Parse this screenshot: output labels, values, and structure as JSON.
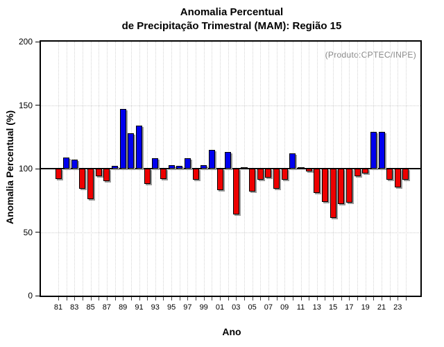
{
  "title_line1": "Anomalia Percentual",
  "title_line2": "de Precipitação Trimestral (MAM): Região 15",
  "annotation": "(Produto:CPTEC/INPE)",
  "chart_data": {
    "type": "bar",
    "title": "Anomalia Percentual de Precipitação Trimestral (MAM): Região 15",
    "xlabel": "Ano",
    "ylabel": "Anomalia Percentual (%)",
    "ylim": [
      0,
      200
    ],
    "yticks": [
      0,
      50,
      100,
      150,
      200
    ],
    "baseline": 100,
    "grid": "dotted",
    "legend_position": "none",
    "x_tick_labels": [
      "81",
      "83",
      "85",
      "87",
      "89",
      "91",
      "93",
      "95",
      "97",
      "99",
      "01",
      "03",
      "05",
      "07",
      "09",
      "11",
      "13",
      "15",
      "17",
      "19",
      "21",
      "23"
    ],
    "categories": [
      1981,
      1982,
      1983,
      1984,
      1985,
      1986,
      1987,
      1988,
      1989,
      1990,
      1991,
      1992,
      1993,
      1994,
      1995,
      1996,
      1997,
      1998,
      1999,
      2000,
      2001,
      2002,
      2003,
      2004,
      2005,
      2006,
      2007,
      2008,
      2009,
      2010,
      2011,
      2012,
      2013,
      2014,
      2015,
      2016,
      2017,
      2018,
      2019,
      2020,
      2021,
      2022,
      2023,
      2024
    ],
    "values": [
      92,
      109,
      107,
      84,
      76,
      94,
      90,
      102,
      147,
      128,
      134,
      88,
      108,
      92,
      103,
      102,
      108,
      91,
      103,
      115,
      83,
      113,
      64,
      100,
      82,
      91,
      93,
      84,
      91,
      112,
      100,
      98,
      81,
      74,
      61,
      72,
      73,
      94,
      96,
      129,
      129,
      91,
      85,
      91
    ],
    "colors": {
      "above_baseline": "#0000ee",
      "below_baseline": "#ee0000",
      "equal_baseline": "#000000"
    }
  }
}
